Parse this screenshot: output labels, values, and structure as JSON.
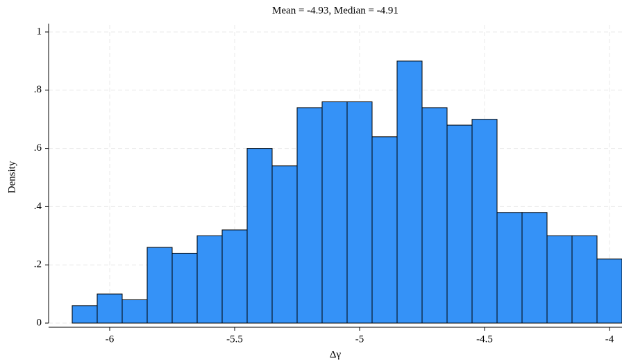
{
  "chart_data": {
    "type": "histogram",
    "title": "Mean = -4.93, Median = -4.91",
    "x_label": "Δγ",
    "y_label": "Density",
    "bins": [
      -6.15,
      -6.05,
      -5.95,
      -5.85,
      -5.75,
      -5.65,
      -5.55,
      -5.45,
      -5.35,
      -5.25,
      -5.15,
      -5.05,
      -4.95,
      -4.85,
      -4.75,
      -4.65,
      -4.55,
      -4.45,
      -4.35,
      -4.25,
      -4.15,
      -4.05,
      -3.95
    ],
    "values": [
      0.06,
      0.1,
      0.08,
      0.26,
      0.24,
      0.3,
      0.32,
      0.6,
      0.54,
      0.74,
      0.76,
      0.76,
      0.64,
      0.9,
      0.74,
      0.68,
      0.7,
      0.38,
      0.38,
      0.3,
      0.3,
      0.22
    ],
    "color": "#3592f7",
    "xlim": [
      -6.25,
      -3.95
    ],
    "xticks": [
      -6,
      -5.5,
      -5,
      -4.5,
      -4
    ],
    "ylim": [
      0,
      1
    ],
    "yticks": [
      0,
      {
        "value": 0.2,
        "label": ".2"
      },
      {
        "value": 0.4,
        "label": ".4"
      },
      {
        "value": 0.6,
        "label": ".6"
      },
      {
        "value": 0.8,
        "label": ".8"
      },
      1
    ],
    "grid": true
  }
}
